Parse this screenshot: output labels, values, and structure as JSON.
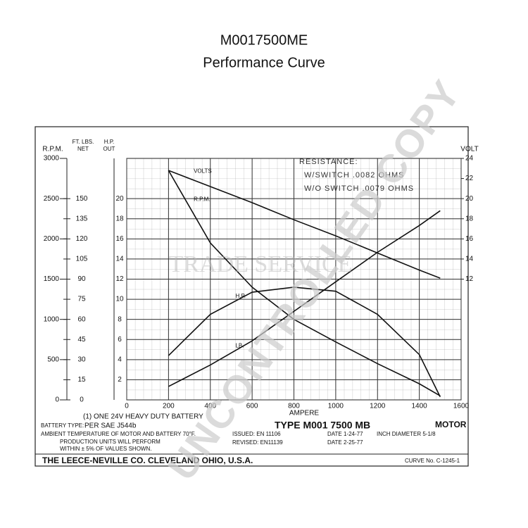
{
  "chart_data": {
    "type": "line",
    "title": "M0017500ME",
    "subtitle": "Performance Curve",
    "xlabel": "AMPERE",
    "xlim": [
      0,
      1600
    ],
    "xticks": [
      0,
      200,
      400,
      600,
      800,
      1000,
      1200,
      1400,
      1600
    ],
    "ylabel": "R.P.M.",
    "ylim": [
      0,
      3000
    ],
    "yticks": [
      0,
      500,
      1000,
      1500,
      2000,
      2500,
      3000
    ],
    "y2label": "VOLT",
    "y2lim": [
      0,
      24
    ],
    "y2ticks": [
      12,
      14,
      16,
      18,
      20,
      22,
      24
    ],
    "y3label": [
      "FT. LBS.",
      "NET"
    ],
    "y3lim": [
      0,
      180
    ],
    "y3ticks": [
      0,
      15,
      30,
      45,
      60,
      75,
      90,
      105,
      120,
      135,
      150
    ],
    "y4label": [
      "H.P.",
      "OUT"
    ],
    "y4lim": [
      0,
      24
    ],
    "y4ticks": [
      2,
      4,
      6,
      8,
      10,
      12,
      14,
      16,
      18,
      20
    ],
    "grid": true,
    "x": [
      200,
      400,
      600,
      800,
      1000,
      1200,
      1400,
      1500
    ],
    "series": [
      {
        "name": "VOLTS",
        "color": "#111111",
        "axis": "y2",
        "values": [
          22.8,
          21.2,
          19.6,
          17.9,
          16.3,
          14.6,
          12.9,
          12.1
        ]
      },
      {
        "name": "R.P.M.",
        "color": "#111111",
        "axis": "y",
        "values": [
          2850,
          1950,
          1400,
          1000,
          720,
          450,
          200,
          50
        ]
      },
      {
        "name": "H.P.",
        "color": "#111111",
        "axis": "y4",
        "values": [
          4.4,
          8.5,
          10.7,
          11.2,
          10.8,
          8.5,
          4.5,
          0.3
        ]
      },
      {
        "name": "LB.",
        "color": "#111111",
        "axis": "y3",
        "values": [
          10,
          26,
          44,
          66,
          88,
          110,
          130,
          141
        ]
      }
    ],
    "annotations": [
      "RESISTANCE:",
      "W/SWITCH .0082 OHMS",
      "W/O SWITCH .0079 OHMS"
    ],
    "footer": {
      "battery": "(1) ONE 24V HEAVY DUTY BATTERY",
      "battery_type_label": "BATTERY TYPE:",
      "battery_type": "PER SAE J544b",
      "ambient": "AMBIENT TEMPERATURE OF MOTOR AND BATTERY 70°F.",
      "production_1": "PRODUCTION UNITS WILL PERFORM",
      "production_2": "WITHIN ± 5% OF VALUES SHOWN.",
      "issued": "ISSUED: EN 11106",
      "revised": "REVISED: EN11139",
      "type": "TYPE M001 7500 MB",
      "motor": "MOTOR",
      "date_1": "DATE 1-24-77",
      "diameter": "INCH DIAMETER 5-1/8",
      "date_2": "DATE 2-25-77",
      "company": "THE LEECE-NEVILLE CO. CLEVELAND OHIO, U.S.A.",
      "curve": "CURVE No. C-1245-1"
    },
    "watermarks": [
      "UNCONTROLLED COPY",
      "TRADE SERVICE"
    ]
  }
}
